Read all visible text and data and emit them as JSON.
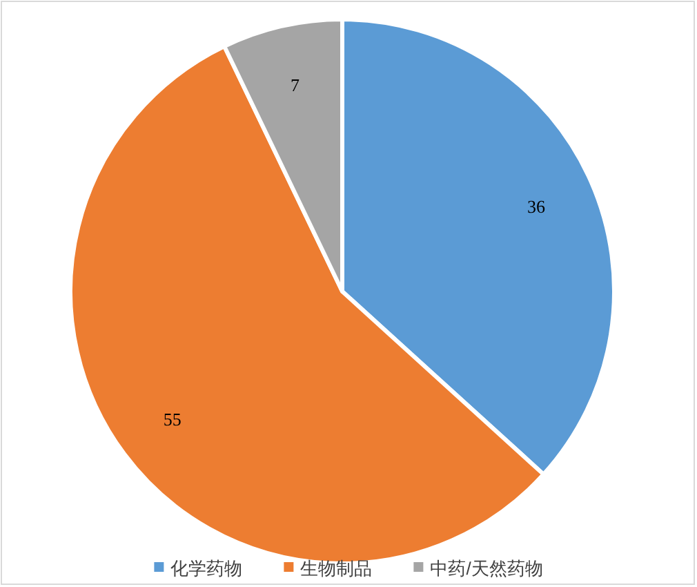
{
  "chart_data": {
    "type": "pie",
    "categories": [
      "化学药物",
      "生物制品",
      "中药/天然药物"
    ],
    "values": [
      36,
      55,
      7
    ],
    "colors": [
      "#5b9bd5",
      "#ed7d31",
      "#a5a5a5"
    ],
    "data_labels": true,
    "legend": "bottom"
  }
}
